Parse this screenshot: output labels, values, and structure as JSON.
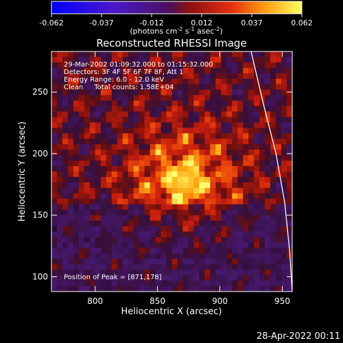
{
  "chart_data": {
    "type": "heatmap",
    "title": "Reconstructed RHESSI Image",
    "xlabel": "Heliocentric X (arcsec)",
    "ylabel": "Heliocentric Y (arcsec)",
    "xlim": [
      765,
      958
    ],
    "ylim": [
      88,
      283
    ],
    "x_ticks": [
      800,
      850,
      900,
      950
    ],
    "y_ticks": [
      100,
      150,
      200,
      250
    ],
    "colorbar": {
      "range": [
        -0.062,
        0.062
      ],
      "ticks": [
        "-0.062",
        "-0.037",
        "-0.012",
        "0.012",
        "0.037",
        "0.062"
      ],
      "label": "(photons cm",
      "label_exp1": "-2",
      "label_mid": " s",
      "label_exp2": "-1",
      "label_mid2": " asec",
      "label_exp3": "-2",
      "label_end": ")"
    },
    "annotations": {
      "time_range": "29-Mar-2002 01:09:32.000 to 01:15:32.000",
      "detectors": "Detectors: 3F 4F 5F 6F 7F 8F, Att 1",
      "energy": "Energy Range: 6.0 - 12.0 keV",
      "clean": "Clean     Total counts: 1.58E+04",
      "peak": "Position of Peak = [871,178]"
    },
    "peak": [
      871,
      178
    ],
    "limb_points": [
      [
        925,
        283
      ],
      [
        935,
        240
      ],
      [
        945,
        200
      ],
      [
        952,
        160
      ],
      [
        956,
        120
      ],
      [
        958,
        88
      ]
    ],
    "colors": {
      "background": "#000000",
      "text": "#ffffff"
    },
    "footer_date": "28-Apr-2022 00:11"
  }
}
